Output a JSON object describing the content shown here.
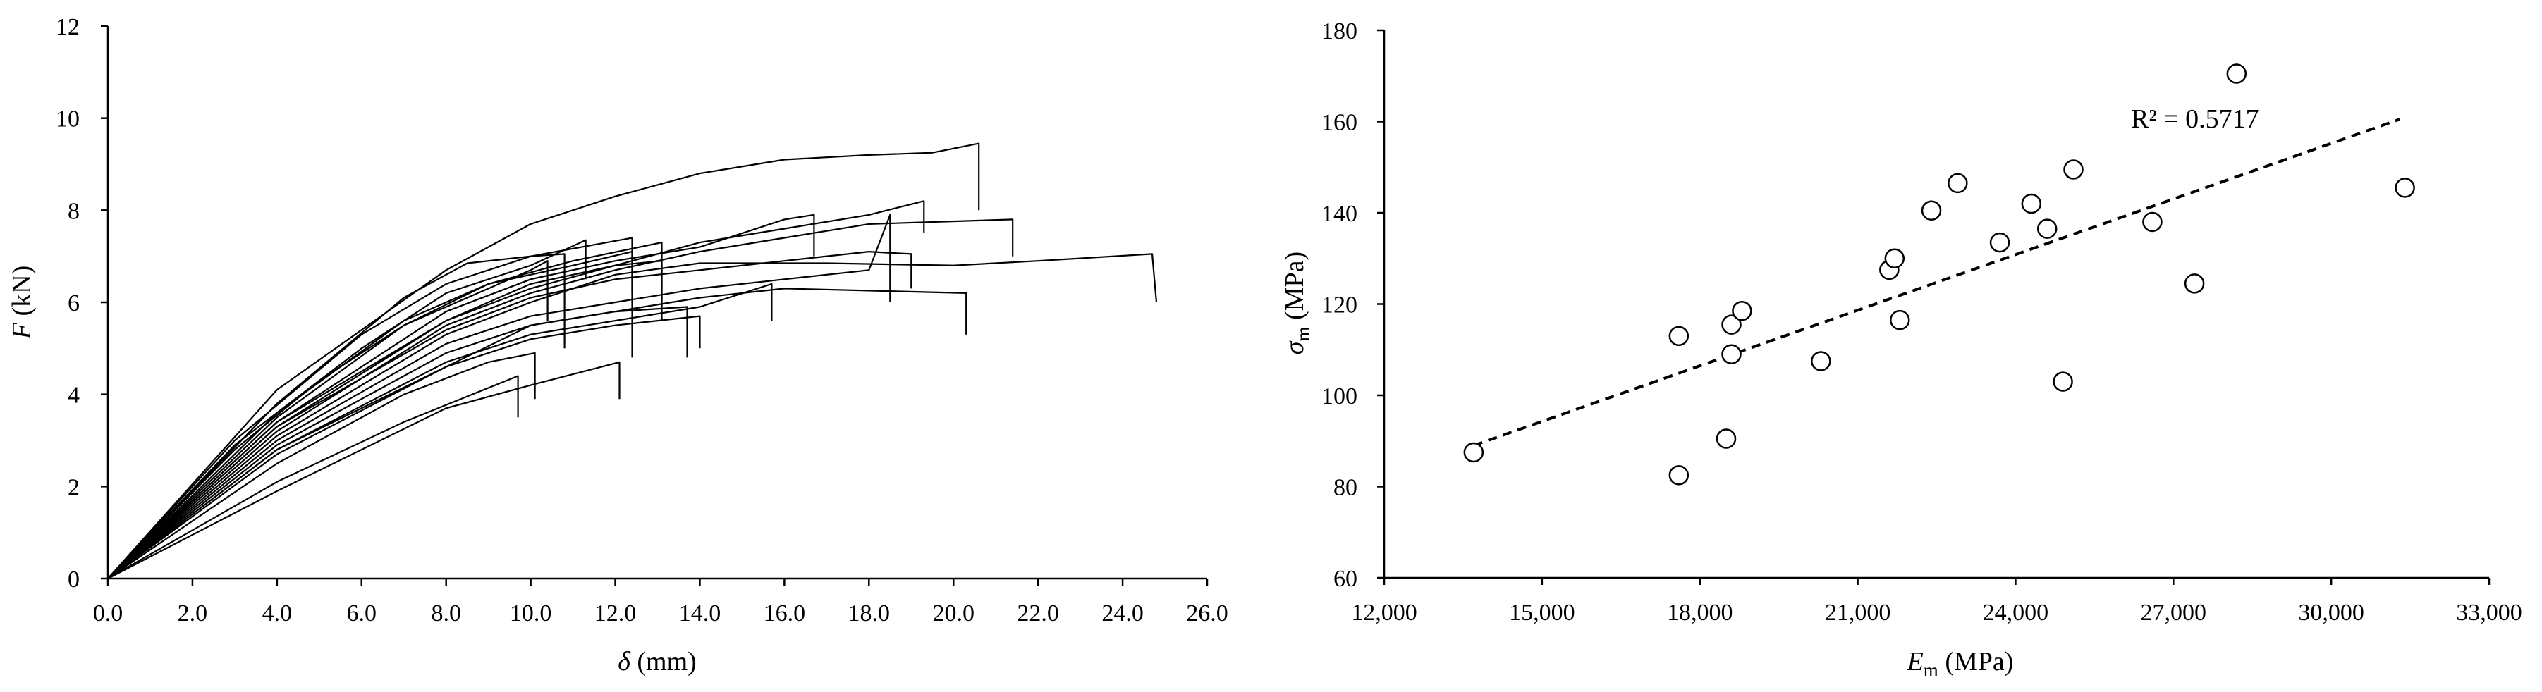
{
  "chart_data": [
    {
      "type": "line",
      "xlabel_symbol": "δ",
      "xlabel_unit": " (mm)",
      "ylabel_symbol": "F",
      "ylabel_unit": " (kN)",
      "xlim": [
        0,
        26
      ],
      "ylim": [
        0,
        12
      ],
      "x_ticks": [
        0,
        2,
        4,
        6,
        8,
        10,
        12,
        14,
        16,
        18,
        20,
        22,
        24,
        26
      ],
      "x_tick_labels": [
        "0.0",
        "2.0",
        "4.0",
        "6.0",
        "8.0",
        "10.0",
        "12.0",
        "14.0",
        "16.0",
        "18.0",
        "20.0",
        "22.0",
        "24.0",
        "26.0"
      ],
      "y_ticks": [
        0,
        2,
        4,
        6,
        8,
        10,
        12
      ],
      "y_tick_labels": [
        "0",
        "2",
        "4",
        "6",
        "8",
        "10",
        "12"
      ],
      "grid": false,
      "series": [
        {
          "points": [
            [
              0,
              0
            ],
            [
              4,
              4.1
            ],
            [
              8,
              6.7
            ],
            [
              10,
              7.7
            ],
            [
              12,
              8.3
            ],
            [
              14,
              8.8
            ],
            [
              16,
              9.1
            ],
            [
              18,
              9.2
            ],
            [
              19.5,
              9.25
            ],
            [
              20.6,
              9.45
            ],
            [
              20.6,
              8.0
            ]
          ]
        },
        {
          "points": [
            [
              0,
              0
            ],
            [
              3,
              3.0
            ],
            [
              6,
              5.3
            ],
            [
              8,
              6.4
            ],
            [
              10,
              7.0
            ],
            [
              10.8,
              7.05
            ],
            [
              10.8,
              5.0
            ]
          ]
        },
        {
          "points": [
            [
              0,
              0
            ],
            [
              3,
              2.9
            ],
            [
              6,
              5.0
            ],
            [
              8,
              6.2
            ],
            [
              10,
              6.8
            ],
            [
              11.3,
              7.35
            ],
            [
              11.3,
              6.5
            ]
          ]
        },
        {
          "points": [
            [
              0,
              0
            ],
            [
              4,
              3.8
            ],
            [
              7,
              6.1
            ],
            [
              8.5,
              6.85
            ],
            [
              10,
              7.0
            ],
            [
              12.4,
              7.4
            ],
            [
              12.4,
              4.8
            ]
          ]
        },
        {
          "points": [
            [
              0,
              0
            ],
            [
              4,
              3.5
            ],
            [
              7,
              5.5
            ],
            [
              9,
              6.4
            ],
            [
              11,
              6.9
            ],
            [
              13.1,
              7.3
            ],
            [
              13.1,
              5.6
            ]
          ]
        },
        {
          "points": [
            [
              0,
              0
            ],
            [
              4,
              3.4
            ],
            [
              8,
              5.8
            ],
            [
              10,
              6.5
            ],
            [
              12,
              6.9
            ],
            [
              14,
              7.2
            ],
            [
              16,
              7.8
            ],
            [
              16.7,
              7.9
            ],
            [
              16.7,
              7.0
            ]
          ]
        },
        {
          "points": [
            [
              0,
              0
            ],
            [
              4,
              3.3
            ],
            [
              8,
              5.6
            ],
            [
              10,
              6.3
            ],
            [
              12,
              6.8
            ],
            [
              14,
              7.3
            ],
            [
              16,
              7.6
            ],
            [
              18,
              7.9
            ],
            [
              19.3,
              8.2
            ],
            [
              19.3,
              7.5
            ]
          ]
        },
        {
          "points": [
            [
              0,
              0
            ],
            [
              4,
              3.2
            ],
            [
              8,
              5.5
            ],
            [
              10,
              6.2
            ],
            [
              12,
              6.7
            ],
            [
              14,
              7.1
            ],
            [
              16,
              7.4
            ],
            [
              18,
              7.7
            ],
            [
              21.4,
              7.8
            ],
            [
              21.4,
              7.0
            ]
          ]
        },
        {
          "points": [
            [
              0,
              0
            ],
            [
              4,
              3.3
            ],
            [
              8,
              5.4
            ],
            [
              10,
              6.1
            ],
            [
              12,
              6.5
            ],
            [
              14,
              6.7
            ],
            [
              16,
              6.9
            ],
            [
              18,
              7.1
            ],
            [
              19,
              7.05
            ],
            [
              19,
              6.3
            ]
          ]
        },
        {
          "points": [
            [
              0,
              0
            ],
            [
              4,
              3.1
            ],
            [
              8,
              5.3
            ],
            [
              10,
              6.0
            ],
            [
              12,
              6.6
            ],
            [
              14,
              6.85
            ],
            [
              17,
              6.85
            ],
            [
              20,
              6.8
            ],
            [
              22,
              6.9
            ],
            [
              24.7,
              7.05
            ],
            [
              24.8,
              6.0
            ]
          ]
        },
        {
          "points": [
            [
              0,
              0
            ],
            [
              4,
              3.0
            ],
            [
              8,
              5.1
            ],
            [
              10,
              5.7
            ],
            [
              12,
              6.0
            ],
            [
              14,
              6.3
            ],
            [
              16,
              6.5
            ],
            [
              18,
              6.7
            ],
            [
              18.5,
              7.9
            ],
            [
              18.5,
              6.0
            ]
          ]
        },
        {
          "points": [
            [
              0,
              0
            ],
            [
              4,
              2.9
            ],
            [
              8,
              4.9
            ],
            [
              10,
              5.5
            ],
            [
              12,
              5.8
            ],
            [
              14,
              6.1
            ],
            [
              16,
              6.3
            ],
            [
              20.3,
              6.2
            ],
            [
              20.3,
              5.3
            ]
          ]
        },
        {
          "points": [
            [
              0,
              0
            ],
            [
              4,
              2.8
            ],
            [
              8,
              4.7
            ],
            [
              10,
              5.3
            ],
            [
              12,
              5.6
            ],
            [
              14,
              5.9
            ],
            [
              15.7,
              6.4
            ],
            [
              15.7,
              5.6
            ]
          ]
        },
        {
          "points": [
            [
              0,
              0
            ],
            [
              4,
              2.7
            ],
            [
              8,
              4.6
            ],
            [
              10,
              5.2
            ],
            [
              12,
              5.5
            ],
            [
              14,
              5.7
            ],
            [
              14,
              5.0
            ]
          ]
        },
        {
          "points": [
            [
              0,
              0
            ],
            [
              4,
              2.8
            ],
            [
              8,
              4.6
            ],
            [
              10,
              5.5
            ],
            [
              12,
              5.8
            ],
            [
              13.7,
              5.9
            ],
            [
              13.7,
              4.8
            ]
          ]
        },
        {
          "points": [
            [
              0,
              0
            ],
            [
              4,
              2.5
            ],
            [
              7,
              4.0
            ],
            [
              9,
              4.7
            ],
            [
              10.1,
              4.9
            ],
            [
              10.1,
              3.9
            ]
          ]
        },
        {
          "points": [
            [
              0,
              0
            ],
            [
              4,
              2.1
            ],
            [
              7,
              3.4
            ],
            [
              9.7,
              4.4
            ],
            [
              9.7,
              3.5
            ]
          ]
        },
        {
          "points": [
            [
              0,
              0
            ],
            [
              4,
              1.9
            ],
            [
              8,
              3.7
            ],
            [
              10,
              4.2
            ],
            [
              12.1,
              4.7
            ],
            [
              12.1,
              3.9
            ]
          ]
        },
        {
          "points": [
            [
              0,
              0
            ],
            [
              3,
              2.8
            ],
            [
              5,
              4.3
            ],
            [
              7,
              5.5
            ],
            [
              9,
              6.3
            ],
            [
              10,
              6.7
            ],
            [
              10.4,
              6.9
            ],
            [
              10.4,
              5.6
            ]
          ]
        },
        {
          "points": [
            [
              0,
              0
            ],
            [
              4,
              3.6
            ],
            [
              7,
              5.6
            ],
            [
              9,
              6.4
            ],
            [
              11,
              6.8
            ],
            [
              12.4,
              7.1
            ],
            [
              12.4,
              6.2
            ]
          ]
        },
        {
          "points": [
            [
              0,
              0
            ],
            [
              4,
              3.4
            ],
            [
              8,
              5.6
            ],
            [
              10,
              6.4
            ],
            [
              12,
              6.8
            ],
            [
              13.1,
              6.9
            ],
            [
              13.1,
              5.9
            ]
          ]
        }
      ]
    },
    {
      "type": "scatter",
      "xlabel_symbol": "E",
      "xlabel_sub": "m",
      "xlabel_unit": " (MPa)",
      "ylabel_symbol": "σ",
      "ylabel_sub": "m",
      "ylabel_unit": " (MPa)",
      "xlim": [
        12000,
        33000
      ],
      "ylim": [
        60,
        180
      ],
      "x_ticks": [
        12000,
        15000,
        18000,
        21000,
        24000,
        27000,
        30000,
        33000
      ],
      "x_tick_labels": [
        "12,000",
        "15,000",
        "18,000",
        "21,000",
        "24,000",
        "27,000",
        "30,000",
        "33,000"
      ],
      "y_ticks": [
        60,
        80,
        100,
        120,
        140,
        160,
        180
      ],
      "y_tick_labels": [
        "60",
        "80",
        "100",
        "120",
        "140",
        "160",
        "180"
      ],
      "grid": false,
      "points": [
        {
          "x": 13700,
          "y": 87.5
        },
        {
          "x": 17600,
          "y": 82.5
        },
        {
          "x": 17600,
          "y": 113
        },
        {
          "x": 18500,
          "y": 90.5
        },
        {
          "x": 18600,
          "y": 109
        },
        {
          "x": 18600,
          "y": 115.5
        },
        {
          "x": 18800,
          "y": 118.5
        },
        {
          "x": 20300,
          "y": 107.5
        },
        {
          "x": 21600,
          "y": 127.5
        },
        {
          "x": 21700,
          "y": 130
        },
        {
          "x": 21800,
          "y": 116.5
        },
        {
          "x": 22400,
          "y": 140.5
        },
        {
          "x": 22900,
          "y": 146.5
        },
        {
          "x": 23700,
          "y": 133.5
        },
        {
          "x": 24300,
          "y": 142
        },
        {
          "x": 24600,
          "y": 136.5
        },
        {
          "x": 24900,
          "y": 103
        },
        {
          "x": 25100,
          "y": 149.5
        },
        {
          "x": 26600,
          "y": 138
        },
        {
          "x": 27400,
          "y": 124.5
        },
        {
          "x": 28200,
          "y": 170.5
        },
        {
          "x": 31400,
          "y": 145.5
        }
      ],
      "trendline": {
        "x": [
          13700,
          31300
        ],
        "y": [
          89,
          160.5
        ],
        "style": "dashed"
      },
      "annotation": "R² = 0.5717"
    }
  ]
}
